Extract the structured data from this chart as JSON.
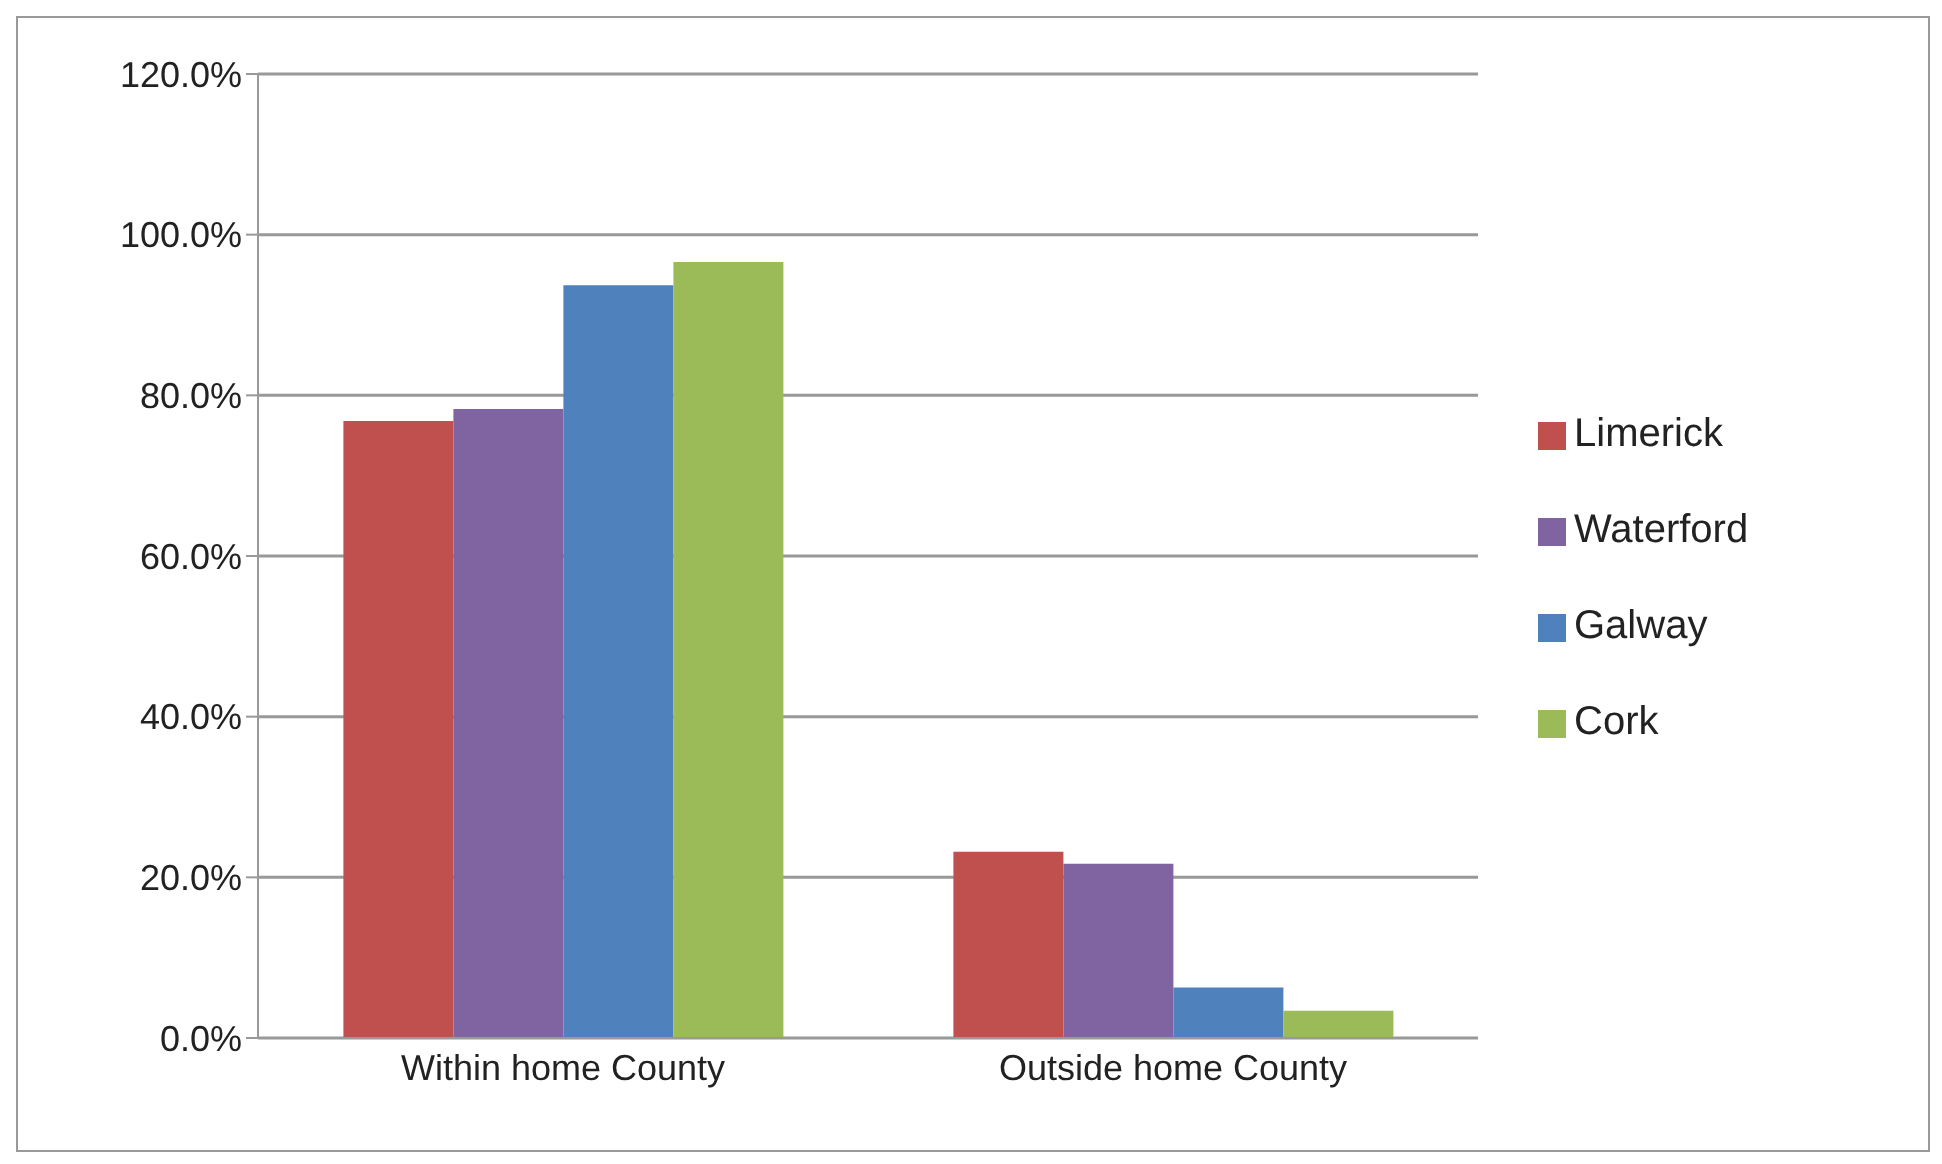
{
  "chart_data": {
    "type": "bar",
    "categories": [
      "Within home County",
      "Outside home County"
    ],
    "series": [
      {
        "name": "Limerick",
        "color": "#c0504d",
        "values": [
          76.8,
          23.2
        ]
      },
      {
        "name": "Waterford",
        "color": "#8064a2",
        "values": [
          78.3,
          21.7
        ]
      },
      {
        "name": "Galway",
        "color": "#4f81bd",
        "values": [
          93.7,
          6.3
        ]
      },
      {
        "name": "Cork",
        "color": "#9bbb59",
        "values": [
          96.6,
          3.4
        ]
      }
    ],
    "ylim": [
      0,
      120
    ],
    "yticks": [
      {
        "value": 0,
        "label": "0.0%"
      },
      {
        "value": 20,
        "label": "20.0%"
      },
      {
        "value": 40,
        "label": "40.0%"
      },
      {
        "value": 60,
        "label": "60.0%"
      },
      {
        "value": 80,
        "label": "80.0%"
      },
      {
        "value": 100,
        "label": "100.0%"
      },
      {
        "value": 120,
        "label": "120.0%"
      }
    ],
    "grid": "y",
    "legend": "right"
  }
}
